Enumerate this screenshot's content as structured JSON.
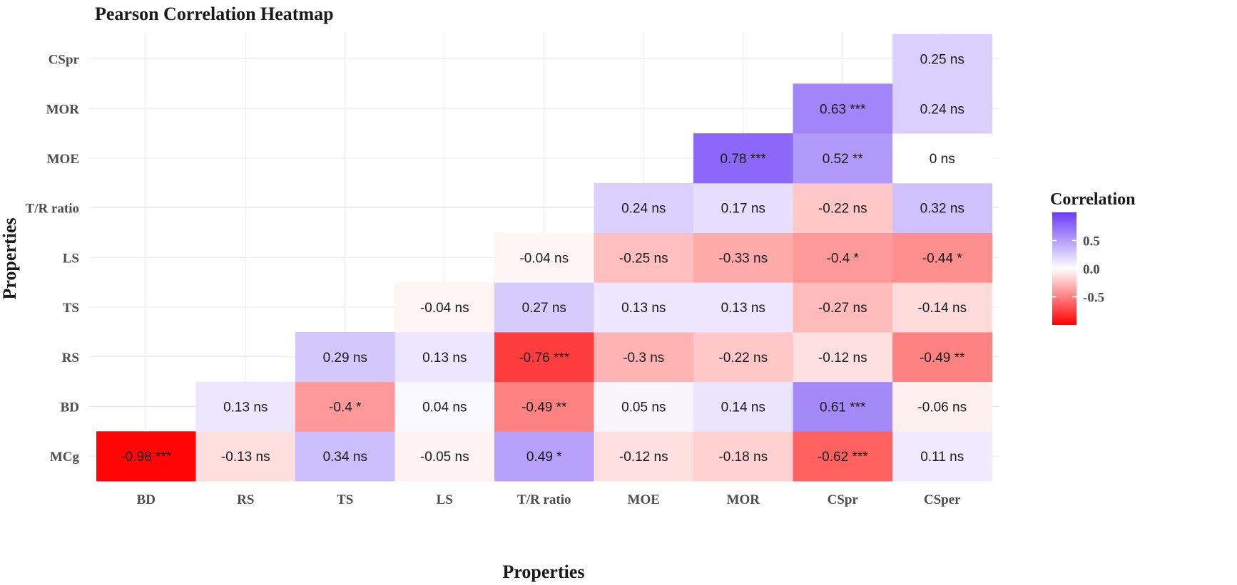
{
  "chart_data": {
    "type": "heatmap",
    "title": "Pearson Correlation Heatmap",
    "xlabel": "Properties",
    "ylabel": "Properties",
    "x_categories": [
      "BD",
      "RS",
      "TS",
      "LS",
      "T/R ratio",
      "MOE",
      "MOR",
      "CSpr",
      "CSper"
    ],
    "y_categories": [
      "MCg",
      "BD",
      "RS",
      "TS",
      "LS",
      "T/R ratio",
      "MOE",
      "MOR",
      "CSpr"
    ],
    "cells": [
      {
        "x": "BD",
        "y": "MCg",
        "value": -0.98,
        "label": "-0.98 ***"
      },
      {
        "x": "RS",
        "y": "MCg",
        "value": -0.13,
        "label": "-0.13 ns"
      },
      {
        "x": "TS",
        "y": "MCg",
        "value": 0.34,
        "label": "0.34 ns"
      },
      {
        "x": "LS",
        "y": "MCg",
        "value": -0.05,
        "label": "-0.05 ns"
      },
      {
        "x": "T/R ratio",
        "y": "MCg",
        "value": 0.49,
        "label": "0.49 *"
      },
      {
        "x": "MOE",
        "y": "MCg",
        "value": -0.12,
        "label": "-0.12 ns"
      },
      {
        "x": "MOR",
        "y": "MCg",
        "value": -0.18,
        "label": "-0.18 ns"
      },
      {
        "x": "CSpr",
        "y": "MCg",
        "value": -0.62,
        "label": "-0.62 ***"
      },
      {
        "x": "CSper",
        "y": "MCg",
        "value": 0.11,
        "label": "0.11 ns"
      },
      {
        "x": "RS",
        "y": "BD",
        "value": 0.13,
        "label": "0.13 ns"
      },
      {
        "x": "TS",
        "y": "BD",
        "value": -0.4,
        "label": "-0.4 *"
      },
      {
        "x": "LS",
        "y": "BD",
        "value": 0.04,
        "label": "0.04 ns"
      },
      {
        "x": "T/R ratio",
        "y": "BD",
        "value": -0.49,
        "label": "-0.49 **"
      },
      {
        "x": "MOE",
        "y": "BD",
        "value": 0.05,
        "label": "0.05 ns"
      },
      {
        "x": "MOR",
        "y": "BD",
        "value": 0.14,
        "label": "0.14 ns"
      },
      {
        "x": "CSpr",
        "y": "BD",
        "value": 0.61,
        "label": "0.61 ***"
      },
      {
        "x": "CSper",
        "y": "BD",
        "value": -0.06,
        "label": "-0.06 ns"
      },
      {
        "x": "TS",
        "y": "RS",
        "value": 0.29,
        "label": "0.29 ns"
      },
      {
        "x": "LS",
        "y": "RS",
        "value": 0.13,
        "label": "0.13 ns"
      },
      {
        "x": "T/R ratio",
        "y": "RS",
        "value": -0.76,
        "label": "-0.76 ***"
      },
      {
        "x": "MOE",
        "y": "RS",
        "value": -0.3,
        "label": "-0.3 ns"
      },
      {
        "x": "MOR",
        "y": "RS",
        "value": -0.22,
        "label": "-0.22 ns"
      },
      {
        "x": "CSpr",
        "y": "RS",
        "value": -0.12,
        "label": "-0.12 ns"
      },
      {
        "x": "CSper",
        "y": "RS",
        "value": -0.49,
        "label": "-0.49 **"
      },
      {
        "x": "LS",
        "y": "TS",
        "value": -0.04,
        "label": "-0.04 ns"
      },
      {
        "x": "T/R ratio",
        "y": "TS",
        "value": 0.27,
        "label": "0.27 ns"
      },
      {
        "x": "MOE",
        "y": "TS",
        "value": 0.13,
        "label": "0.13 ns"
      },
      {
        "x": "MOR",
        "y": "TS",
        "value": 0.13,
        "label": "0.13 ns"
      },
      {
        "x": "CSpr",
        "y": "TS",
        "value": -0.27,
        "label": "-0.27 ns"
      },
      {
        "x": "CSper",
        "y": "TS",
        "value": -0.14,
        "label": "-0.14 ns"
      },
      {
        "x": "T/R ratio",
        "y": "LS",
        "value": -0.04,
        "label": "-0.04 ns"
      },
      {
        "x": "MOE",
        "y": "LS",
        "value": -0.25,
        "label": "-0.25 ns"
      },
      {
        "x": "MOR",
        "y": "LS",
        "value": -0.33,
        "label": "-0.33 ns"
      },
      {
        "x": "CSpr",
        "y": "LS",
        "value": -0.4,
        "label": "-0.4 *"
      },
      {
        "x": "CSper",
        "y": "LS",
        "value": -0.44,
        "label": "-0.44 *"
      },
      {
        "x": "MOE",
        "y": "T/R ratio",
        "value": 0.24,
        "label": "0.24 ns"
      },
      {
        "x": "MOR",
        "y": "T/R ratio",
        "value": 0.17,
        "label": "0.17 ns"
      },
      {
        "x": "CSpr",
        "y": "T/R ratio",
        "value": -0.22,
        "label": "-0.22 ns"
      },
      {
        "x": "CSper",
        "y": "T/R ratio",
        "value": 0.32,
        "label": "0.32 ns"
      },
      {
        "x": "MOR",
        "y": "MOE",
        "value": 0.78,
        "label": "0.78 ***"
      },
      {
        "x": "CSpr",
        "y": "MOE",
        "value": 0.52,
        "label": "0.52 **"
      },
      {
        "x": "CSper",
        "y": "MOE",
        "value": 0.0,
        "label": "0 ns"
      },
      {
        "x": "CSpr",
        "y": "MOR",
        "value": 0.63,
        "label": "0.63 ***"
      },
      {
        "x": "CSper",
        "y": "MOR",
        "value": 0.24,
        "label": "0.24 ns"
      },
      {
        "x": "CSper",
        "y": "CSpr",
        "value": 0.25,
        "label": "0.25 ns"
      }
    ],
    "color_scale": {
      "low": "#ff0000",
      "mid": "#ffffff",
      "high": "#6a3df5",
      "limits": [
        -1,
        1
      ]
    },
    "legend": {
      "title": "Correlation",
      "ticks": [
        0.5,
        0.0,
        -0.5
      ],
      "tick_labels": [
        "0.5",
        "0.0",
        "-0.5"
      ],
      "placement": "right"
    },
    "grid": true,
    "colors": {
      "title": "#1a1a1a",
      "tick_text": "#4d4d4d",
      "grid": "#ebebeb",
      "cell_text": "#1a1a1a"
    }
  }
}
